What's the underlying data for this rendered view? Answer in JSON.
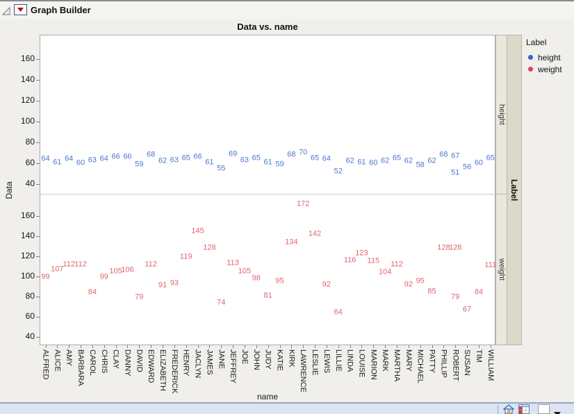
{
  "window": {
    "title": "Graph Builder"
  },
  "chart": {
    "title": "Data vs. name",
    "x_axis_label": "name",
    "y_axis_label": "Data",
    "y_ticks": [
      160,
      140,
      120,
      100,
      80,
      60,
      40
    ]
  },
  "panel_strip": {
    "top": "height",
    "bottom": "weight",
    "group": "Label"
  },
  "legend": {
    "title": "Label",
    "items": [
      {
        "label": "height",
        "color": "#3b63c6"
      },
      {
        "label": "weight",
        "color": "#cf4a54"
      }
    ]
  },
  "colors": {
    "height_label": "#4d76d0",
    "weight_label": "#e2646c"
  },
  "chart_data": {
    "type": "scatter",
    "title": "Data vs. name",
    "xlabel": "name",
    "ylabel": "Data",
    "y_ticks": [
      160,
      140,
      120,
      100,
      80,
      60,
      40
    ],
    "panels": [
      "height",
      "weight"
    ],
    "panel_group_label": "Label",
    "point_labels_shown": true,
    "categories": [
      "ALFRED",
      "ALICE",
      "AMY",
      "BARBARA",
      "CAROL",
      "CHRIS",
      "CLAY",
      "DANNY",
      "DAVID",
      "EDWARD",
      "ELIZABETH",
      "FREDERICK",
      "HENRY",
      "JACLYN",
      "JAMES",
      "JANE",
      "JEFFREY",
      "JOE",
      "JOHN",
      "JUDY",
      "KATIE",
      "KIRK",
      "LAWRENCE",
      "LESLIE",
      "LEWIS",
      "LILLIE",
      "LINDA",
      "LOUISE",
      "MARION",
      "MARK",
      "MARTHA",
      "MARY",
      "MICHAEL",
      "PATTY",
      "PHILLIP",
      "ROBERT",
      "SUSAN",
      "TIM",
      "WILLIAM"
    ],
    "points": [
      {
        "name": "ALFRED",
        "height": 64,
        "weight": 99
      },
      {
        "name": "ALICE",
        "height": 61,
        "weight": 107
      },
      {
        "name": "AMY",
        "height": 64,
        "weight": 112
      },
      {
        "name": "BARBARA",
        "height": 60,
        "weight": 112
      },
      {
        "name": "CAROL",
        "height": 63,
        "weight": 84
      },
      {
        "name": "CHRIS",
        "height": 64,
        "weight": 99
      },
      {
        "name": "CLAY",
        "height": 66,
        "weight": 105
      },
      {
        "name": "DANNY",
        "height": 66,
        "weight": 106
      },
      {
        "name": "DAVID",
        "height": 59,
        "weight": 79
      },
      {
        "name": "EDWARD",
        "height": 68,
        "weight": 112
      },
      {
        "name": "ELIZABETH",
        "height": 62,
        "weight": 91
      },
      {
        "name": "FREDERICK",
        "height": 63,
        "weight": 93
      },
      {
        "name": "HENRY",
        "height": 65,
        "weight": 119
      },
      {
        "name": "JACLYN",
        "height": 66,
        "weight": 145
      },
      {
        "name": "JAMES",
        "height": 61,
        "weight": 128
      },
      {
        "name": "JANE",
        "height": 55,
        "weight": 74
      },
      {
        "name": "JEFFREY",
        "height": 69,
        "weight": 113
      },
      {
        "name": "JOE",
        "height": 63,
        "weight": 105
      },
      {
        "name": "JOHN",
        "height": 65,
        "weight": 98
      },
      {
        "name": "JUDY",
        "height": 61,
        "weight": 81
      },
      {
        "name": "KATIE",
        "height": 59,
        "weight": 95
      },
      {
        "name": "KIRK",
        "height": 68,
        "weight": 134
      },
      {
        "name": "LAWRENCE",
        "height": 70,
        "weight": 172
      },
      {
        "name": "LESLIE",
        "height": 65,
        "weight": 142
      },
      {
        "name": "LEWIS",
        "height": 64,
        "weight": 92
      },
      {
        "name": "LILLIE",
        "height": 52,
        "weight": 64
      },
      {
        "name": "LINDA",
        "height": 62,
        "weight": 116
      },
      {
        "name": "LOUISE",
        "height": 61,
        "weight": 123
      },
      {
        "name": "MARION",
        "height": 60,
        "weight": 115
      },
      {
        "name": "MARK",
        "height": 62,
        "weight": 104
      },
      {
        "name": "MARTHA",
        "height": 65,
        "weight": 112
      },
      {
        "name": "MARY",
        "height": 62,
        "weight": 92
      },
      {
        "name": "MICHAEL",
        "height": 58,
        "weight": 95
      },
      {
        "name": "PATTY",
        "height": 62,
        "weight": 85
      },
      {
        "name": "PHILLIP",
        "height": 68,
        "weight": 128
      },
      {
        "name": "ROBERT",
        "height": 67,
        "weight": 128
      },
      {
        "name": "ROBERT",
        "height": 51,
        "weight": 79
      },
      {
        "name": "SUSAN",
        "height": 56,
        "weight": 67
      },
      {
        "name": "TIM",
        "height": 60,
        "weight": 84
      },
      {
        "name": "WILLIAM",
        "height": 65,
        "weight": 111
      }
    ]
  },
  "status_bar": {
    "icons": [
      "home-icon",
      "data-table-icon",
      "selection-box",
      "dropdown-triangle"
    ]
  }
}
